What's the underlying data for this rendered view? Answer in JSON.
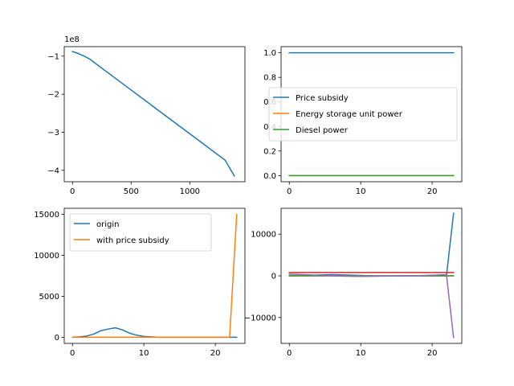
{
  "colors": {
    "c0": "#1f77b4",
    "c1": "#ff7f0e",
    "c2": "#2ca02c",
    "c3": "#d62728",
    "c4": "#9467bd"
  },
  "chart_data": [
    {
      "type": "line",
      "panel": "top-left",
      "title": "",
      "xlabel": "",
      "ylabel": "",
      "offset_label": "1e8",
      "xlim": [
        -70,
        1470
      ],
      "ylim": [
        -4.3,
        -0.75
      ],
      "xticks": [
        0,
        500,
        1000
      ],
      "xtick_labels": [
        "0",
        "500",
        "1000"
      ],
      "yticks": [
        -1,
        -2,
        -3,
        -4
      ],
      "ytick_labels": [
        "−1",
        "−2",
        "−3",
        "−4"
      ],
      "series": [
        {
          "color": "#1f77b4",
          "x": [
            0,
            50,
            100,
            150,
            200,
            300,
            400,
            500,
            700,
            900,
            1100,
            1300,
            1380
          ],
          "y": [
            -0.88,
            -0.93,
            -1.0,
            -1.08,
            -1.2,
            -1.43,
            -1.66,
            -1.89,
            -2.35,
            -2.81,
            -3.27,
            -3.73,
            -4.15
          ]
        }
      ]
    },
    {
      "type": "line",
      "panel": "top-right",
      "title": "",
      "xlabel": "",
      "ylabel": "",
      "xlim": [
        -1.15,
        24.15
      ],
      "ylim": [
        -0.05,
        1.05
      ],
      "xticks": [
        0,
        10,
        20
      ],
      "xtick_labels": [
        "0",
        "10",
        "20"
      ],
      "yticks": [
        0.0,
        0.2,
        0.4,
        0.6,
        0.8,
        1.0
      ],
      "ytick_labels": [
        "0.0",
        "0.2",
        "0.4",
        "0.6",
        "0.8",
        "1.0"
      ],
      "legend": "center-right",
      "series": [
        {
          "name": "Price subsidy",
          "color": "#1f77b4",
          "x": [
            0,
            23
          ],
          "y": [
            1.0,
            1.0
          ]
        },
        {
          "name": "Energy storage unit power",
          "color": "#ff7f0e",
          "x": [
            0,
            23
          ],
          "y": [
            0.0,
            0.0
          ]
        },
        {
          "name": "Diesel power",
          "color": "#2ca02c",
          "x": [
            0,
            23
          ],
          "y": [
            0.0,
            0.0
          ]
        }
      ]
    },
    {
      "type": "line",
      "panel": "bottom-left",
      "title": "",
      "xlabel": "",
      "ylabel": "",
      "xlim": [
        -1.15,
        24.15
      ],
      "ylim": [
        -750,
        15750
      ],
      "xticks": [
        0,
        10,
        20
      ],
      "xtick_labels": [
        "0",
        "10",
        "20"
      ],
      "yticks": [
        0,
        5000,
        10000,
        15000
      ],
      "ytick_labels": [
        "0",
        "5000",
        "10000",
        "15000"
      ],
      "legend": "upper-left",
      "series": [
        {
          "name": "origin",
          "color": "#1f77b4",
          "x": [
            0,
            1,
            2,
            3,
            4,
            5,
            6,
            7,
            8,
            9,
            10,
            11,
            12,
            13,
            14,
            15,
            16,
            17,
            18,
            19,
            20,
            21,
            22,
            23
          ],
          "y": [
            0,
            50,
            150,
            400,
            800,
            1000,
            1150,
            900,
            500,
            250,
            100,
            50,
            0,
            0,
            0,
            0,
            0,
            0,
            0,
            0,
            0,
            0,
            0,
            0
          ]
        },
        {
          "name": "with price subsidy",
          "color": "#ff7f0e",
          "x": [
            0,
            1,
            2,
            3,
            4,
            5,
            6,
            7,
            8,
            9,
            10,
            11,
            12,
            13,
            14,
            15,
            16,
            17,
            18,
            19,
            20,
            21,
            22,
            23
          ],
          "y": [
            0,
            0,
            0,
            0,
            0,
            0,
            0,
            0,
            0,
            0,
            0,
            0,
            0,
            0,
            0,
            0,
            0,
            0,
            0,
            0,
            0,
            0,
            0,
            15000
          ]
        }
      ]
    },
    {
      "type": "line",
      "panel": "bottom-right",
      "title": "",
      "xlabel": "",
      "ylabel": "",
      "xlim": [
        -1.15,
        24.15
      ],
      "ylim": [
        -16200,
        16200
      ],
      "xticks": [
        0,
        10,
        20
      ],
      "xtick_labels": [
        "0",
        "10",
        "20"
      ],
      "yticks": [
        -10000,
        0,
        10000
      ],
      "ytick_labels": [
        "−10000",
        "0",
        "10000"
      ],
      "series": [
        {
          "color": "#1f77b4",
          "x": [
            0,
            2,
            4,
            6,
            8,
            10,
            12,
            14,
            16,
            18,
            20,
            22,
            23
          ],
          "y": [
            0,
            50,
            200,
            300,
            200,
            100,
            0,
            0,
            0,
            0,
            0,
            0,
            15000
          ]
        },
        {
          "color": "#ff7f0e",
          "x": [
            0,
            23
          ],
          "y": [
            0,
            0
          ]
        },
        {
          "color": "#2ca02c",
          "x": [
            0,
            23
          ],
          "y": [
            0,
            0
          ]
        },
        {
          "color": "#d62728",
          "x": [
            0,
            23
          ],
          "y": [
            800,
            800
          ]
        },
        {
          "color": "#9467bd",
          "x": [
            0,
            2,
            4,
            6,
            8,
            10,
            12,
            14,
            16,
            18,
            20,
            22,
            23
          ],
          "y": [
            400,
            300,
            150,
            0,
            -100,
            -150,
            -100,
            -50,
            0,
            50,
            150,
            300,
            -14800
          ]
        }
      ]
    }
  ]
}
